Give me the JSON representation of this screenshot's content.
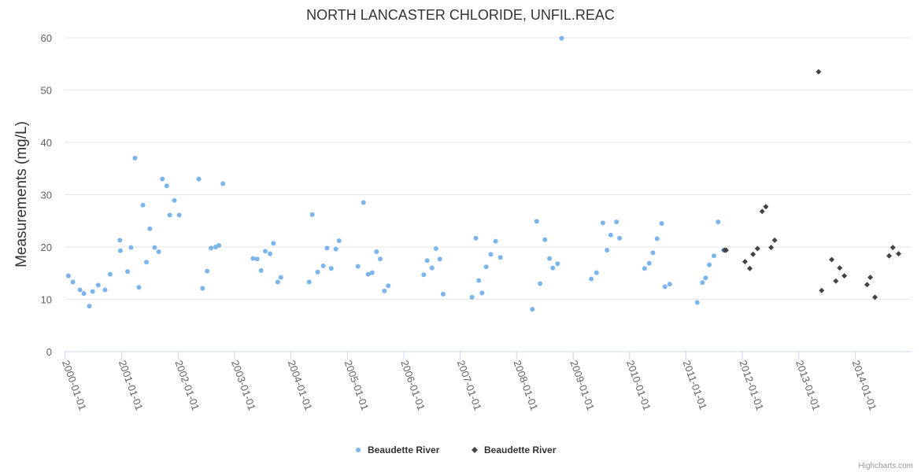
{
  "chart_data": {
    "type": "scatter",
    "title": "NORTH LANCASTER CHLORIDE, UNFIL.REAC",
    "ylabel": "Measurements (mg/L)",
    "xlabel": "",
    "ylim": [
      0,
      60
    ],
    "yticks": [
      0,
      10,
      20,
      30,
      40,
      50,
      60
    ],
    "xlim": [
      "1999-12-28",
      "2014-12-31"
    ],
    "xticks": [
      "2000-01-01",
      "2001-01-01",
      "2002-01-01",
      "2003-01-01",
      "2004-01-01",
      "2005-01-01",
      "2006-01-01",
      "2007-01-01",
      "2008-01-01",
      "2009-01-01",
      "2010-01-01",
      "2011-01-01",
      "2012-01-01",
      "2013-01-01",
      "2014-01-01"
    ],
    "grid": true,
    "legend_position": "bottom-center",
    "series": [
      {
        "name": "Beaudette River",
        "marker": "circle",
        "color": "#7cb5ec",
        "points": [
          [
            "2000-01-22",
            14.5
          ],
          [
            "2000-02-20",
            13.3
          ],
          [
            "2000-04-06",
            11.8
          ],
          [
            "2000-05-01",
            11.1
          ],
          [
            "2000-06-05",
            8.7
          ],
          [
            "2000-06-27",
            11.5
          ],
          [
            "2000-08-02",
            12.7
          ],
          [
            "2000-09-15",
            11.8
          ],
          [
            "2000-10-18",
            14.8
          ],
          [
            "2000-12-20",
            21.3
          ],
          [
            "2000-12-23",
            19.3
          ],
          [
            "2001-02-08",
            15.3
          ],
          [
            "2001-03-02",
            19.9
          ],
          [
            "2001-03-28",
            37.0
          ],
          [
            "2001-04-22",
            12.3
          ],
          [
            "2001-05-18",
            28.0
          ],
          [
            "2001-06-10",
            17.1
          ],
          [
            "2001-07-02",
            23.5
          ],
          [
            "2001-08-02",
            19.9
          ],
          [
            "2001-08-28",
            19.1
          ],
          [
            "2001-09-21",
            33.0
          ],
          [
            "2001-10-19",
            31.7
          ],
          [
            "2001-11-08",
            26.1
          ],
          [
            "2001-12-08",
            28.9
          ],
          [
            "2002-01-08",
            26.1
          ],
          [
            "2002-05-15",
            33.0
          ],
          [
            "2002-06-08",
            12.1
          ],
          [
            "2002-07-08",
            15.4
          ],
          [
            "2002-08-02",
            19.8
          ],
          [
            "2002-09-01",
            20.0
          ],
          [
            "2002-09-22",
            20.3
          ],
          [
            "2002-10-18",
            32.1
          ],
          [
            "2003-05-01",
            17.8
          ],
          [
            "2003-05-28",
            17.7
          ],
          [
            "2003-06-22",
            15.5
          ],
          [
            "2003-07-19",
            19.2
          ],
          [
            "2003-08-19",
            18.7
          ],
          [
            "2003-09-10",
            20.7
          ],
          [
            "2003-10-08",
            13.3
          ],
          [
            "2003-10-28",
            14.2
          ],
          [
            "2004-04-28",
            13.3
          ],
          [
            "2004-05-18",
            26.2
          ],
          [
            "2004-06-22",
            15.2
          ],
          [
            "2004-07-28",
            16.4
          ],
          [
            "2004-08-22",
            19.8
          ],
          [
            "2004-09-18",
            15.9
          ],
          [
            "2004-10-18",
            19.6
          ],
          [
            "2004-11-08",
            21.2
          ],
          [
            "2005-03-10",
            16.3
          ],
          [
            "2005-04-15",
            28.5
          ],
          [
            "2005-05-15",
            14.8
          ],
          [
            "2005-06-10",
            15.1
          ],
          [
            "2005-07-08",
            19.1
          ],
          [
            "2005-08-01",
            17.7
          ],
          [
            "2005-08-28",
            11.6
          ],
          [
            "2005-09-22",
            12.6
          ],
          [
            "2006-05-10",
            14.7
          ],
          [
            "2006-06-01",
            17.4
          ],
          [
            "2006-07-02",
            16.0
          ],
          [
            "2006-07-28",
            19.7
          ],
          [
            "2006-08-22",
            17.7
          ],
          [
            "2006-09-12",
            11.0
          ],
          [
            "2007-03-18",
            10.4
          ],
          [
            "2007-04-12",
            21.7
          ],
          [
            "2007-05-01",
            13.6
          ],
          [
            "2007-05-22",
            11.2
          ],
          [
            "2007-06-18",
            16.2
          ],
          [
            "2007-07-18",
            18.6
          ],
          [
            "2007-08-18",
            21.1
          ],
          [
            "2007-09-18",
            18.0
          ],
          [
            "2008-04-12",
            8.1
          ],
          [
            "2008-05-10",
            24.9
          ],
          [
            "2008-06-01",
            13.0
          ],
          [
            "2008-07-02",
            21.4
          ],
          [
            "2008-08-01",
            17.8
          ],
          [
            "2008-08-22",
            16.0
          ],
          [
            "2008-09-22",
            16.8
          ],
          [
            "2008-10-18",
            59.9
          ],
          [
            "2009-04-28",
            13.9
          ],
          [
            "2009-06-01",
            15.1
          ],
          [
            "2009-07-12",
            24.6
          ],
          [
            "2009-08-08",
            19.4
          ],
          [
            "2009-09-01",
            22.3
          ],
          [
            "2009-10-08",
            24.8
          ],
          [
            "2009-10-28",
            21.7
          ],
          [
            "2010-04-08",
            15.9
          ],
          [
            "2010-05-08",
            16.9
          ],
          [
            "2010-06-01",
            18.9
          ],
          [
            "2010-06-28",
            21.6
          ],
          [
            "2010-07-28",
            24.5
          ],
          [
            "2010-08-18",
            12.4
          ],
          [
            "2010-09-18",
            12.9
          ],
          [
            "2011-03-15",
            9.4
          ],
          [
            "2011-04-18",
            13.2
          ],
          [
            "2011-05-08",
            14.1
          ],
          [
            "2011-06-01",
            16.6
          ],
          [
            "2011-07-01",
            18.3
          ],
          [
            "2011-07-28",
            24.8
          ],
          [
            "2011-09-01",
            19.4
          ],
          [
            "2011-09-10",
            19.4
          ]
        ]
      },
      {
        "name": "Beaudette River",
        "marker": "diamond",
        "color": "#434348",
        "points": [
          [
            "2011-09-08",
            19.4
          ],
          [
            "2011-09-18",
            19.4
          ],
          [
            "2012-01-18",
            17.2
          ],
          [
            "2012-02-18",
            15.9
          ],
          [
            "2012-03-10",
            18.6
          ],
          [
            "2012-04-08",
            19.7
          ],
          [
            "2012-05-08",
            26.8
          ],
          [
            "2012-06-01",
            27.7
          ],
          [
            "2012-07-05",
            19.9
          ],
          [
            "2012-07-28",
            21.3
          ],
          [
            "2013-05-08",
            53.5
          ],
          [
            "2013-05-28",
            11.7
          ],
          [
            "2013-08-01",
            17.6
          ],
          [
            "2013-08-28",
            13.5
          ],
          [
            "2013-09-22",
            16.0
          ],
          [
            "2013-10-22",
            14.5
          ],
          [
            "2014-03-18",
            12.8
          ],
          [
            "2014-04-08",
            14.2
          ],
          [
            "2014-05-08",
            10.4
          ],
          [
            "2014-08-08",
            18.3
          ],
          [
            "2014-09-01",
            19.9
          ],
          [
            "2014-10-08",
            18.7
          ]
        ]
      }
    ]
  },
  "credits": "Highcharts.com"
}
